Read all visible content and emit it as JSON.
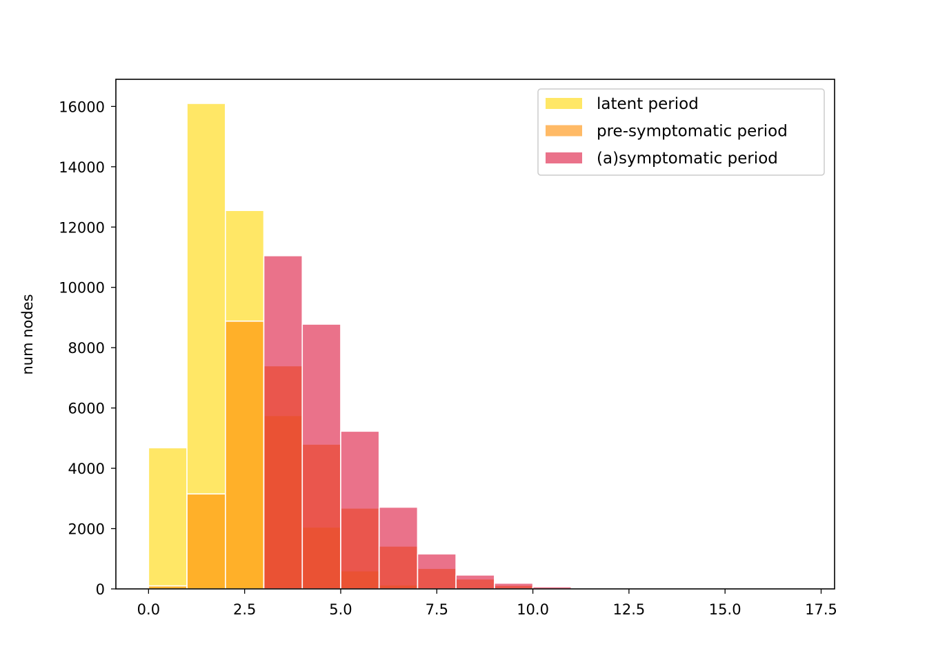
{
  "chart_data": {
    "type": "bar",
    "subtype": "overlaid-histogram",
    "title": "",
    "xlabel": "",
    "ylabel": "num nodes",
    "xlim": [
      -0.85,
      17.85
    ],
    "ylim": [
      0,
      16900
    ],
    "bin_edges": [
      0,
      1,
      2,
      3,
      4,
      5,
      6,
      7,
      8,
      9,
      10,
      11,
      12,
      13,
      14,
      15,
      16,
      17
    ],
    "x_ticks": [
      0.0,
      2.5,
      5.0,
      7.5,
      10.0,
      12.5,
      15.0,
      17.5
    ],
    "x_tick_labels": [
      "0.0",
      "2.5",
      "5.0",
      "7.5",
      "10.0",
      "12.5",
      "15.0",
      "17.5"
    ],
    "y_ticks": [
      0,
      2000,
      4000,
      6000,
      8000,
      10000,
      12000,
      14000,
      16000
    ],
    "y_tick_labels": [
      "0",
      "2000",
      "4000",
      "6000",
      "8000",
      "10000",
      "12000",
      "14000",
      "16000"
    ],
    "grid": false,
    "legend_position": "top-right",
    "series": [
      {
        "name": "latent period",
        "color": "#FFD700",
        "alpha": 0.6,
        "values": [
          4680,
          16100,
          12550,
          5750,
          2050,
          600,
          130,
          20,
          5,
          0,
          0,
          0,
          0,
          0,
          0,
          0,
          0
        ]
      },
      {
        "name": "pre-symptomatic period",
        "color": "#FF8C00",
        "alpha": 0.6,
        "values": [
          100,
          3150,
          8880,
          7400,
          4800,
          2680,
          1420,
          680,
          330,
          120,
          30,
          10,
          0,
          0,
          0,
          0,
          0
        ]
      },
      {
        "name": "(a)symptomatic period",
        "color": "#DC143C",
        "alpha": 0.6,
        "values": [
          0,
          0,
          0,
          11050,
          8780,
          5230,
          2710,
          1160,
          460,
          190,
          70,
          20,
          5,
          0,
          0,
          0,
          0
        ]
      }
    ]
  }
}
